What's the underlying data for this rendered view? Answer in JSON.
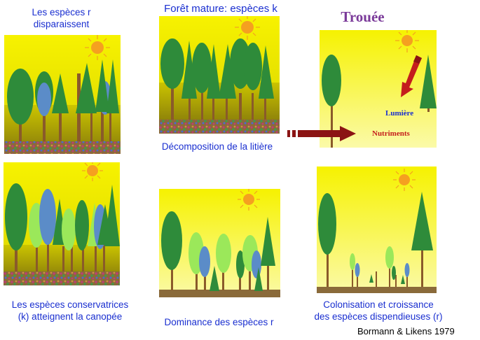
{
  "captions": {
    "top_left": "Les espèces r\ndisparaissent",
    "top_center": "Forêt mature: espèces k",
    "top_right": "Trouée",
    "middle_center": "Décomposition de la litière",
    "bottom_left": "Les espèces conservatrices\n(k) atteignent la canopée",
    "bottom_center": "Dominance des espèces r",
    "bottom_right": "Colonisation et croissance\ndes espèces dispendieuses (r)"
  },
  "gap_labels": {
    "light": "Lumière",
    "nutrients": "Nutriments"
  },
  "citation": "Bormann & Likens 1979",
  "colors": {
    "caption_blue": "#1a2fd0",
    "title_purple": "#7b3b9a",
    "arrow_red": "#8b1414",
    "sky_yellow": "#f7f200",
    "soil_brown": "#6b4a1f",
    "tree_dark_green": "#2e8b3a",
    "tree_light_green": "#9be85a",
    "tree_blue": "#5b8cc8",
    "trunk_brown": "#8a5a2a",
    "sun_orange": "#f5a020"
  }
}
